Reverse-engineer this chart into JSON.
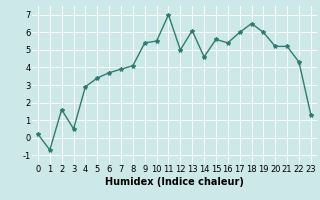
{
  "x": [
    0,
    1,
    2,
    3,
    4,
    5,
    6,
    7,
    8,
    9,
    10,
    11,
    12,
    13,
    14,
    15,
    16,
    17,
    18,
    19,
    20,
    21,
    22,
    23
  ],
  "y": [
    0.2,
    -0.7,
    1.6,
    0.5,
    2.9,
    3.4,
    3.7,
    3.9,
    4.1,
    5.4,
    5.5,
    7.0,
    5.0,
    6.1,
    4.6,
    5.6,
    5.4,
    6.0,
    6.5,
    6.0,
    5.2,
    5.2,
    4.3,
    1.3
  ],
  "line_color": "#2e7d6e",
  "marker": "*",
  "marker_size": 3,
  "bg_color": "#cce8e8",
  "grid_color": "#ffffff",
  "xlabel": "Humidex (Indice chaleur)",
  "xlim": [
    -0.5,
    23.5
  ],
  "ylim": [
    -1.5,
    7.5
  ],
  "yticks": [
    -1,
    0,
    1,
    2,
    3,
    4,
    5,
    6,
    7
  ],
  "xticks": [
    0,
    1,
    2,
    3,
    4,
    5,
    6,
    7,
    8,
    9,
    10,
    11,
    12,
    13,
    14,
    15,
    16,
    17,
    18,
    19,
    20,
    21,
    22,
    23
  ],
  "xlabel_fontsize": 7,
  "tick_fontsize": 6,
  "line_width": 1.0
}
